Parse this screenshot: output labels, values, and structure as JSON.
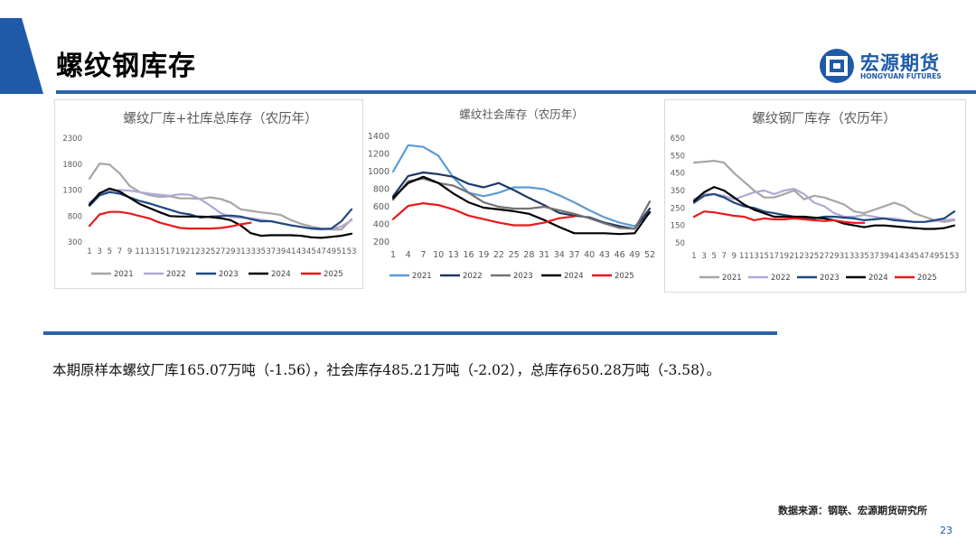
{
  "page": {
    "title": "螺纹钢库存",
    "summary": "本期原样本螺纹厂库165.07万吨（-1.56），社会库存485.21万吨（-2.02），总库存650.28万吨（-3.58）。",
    "source": "数据来源：钢联、宏源期货研究所",
    "page_number": "23"
  },
  "logo": {
    "cn": "宏源期货",
    "en": "HONGYUAN FUTURES"
  },
  "colors": {
    "accent": "#1e5aa8",
    "rule": "#2a63a6",
    "triangle": "#1e5aa8"
  },
  "chart_data": [
    {
      "type": "line",
      "title": "螺纹厂库+社库总库存（农历年）",
      "x": [
        1,
        3,
        5,
        7,
        9,
        11,
        13,
        15,
        17,
        19,
        21,
        23,
        25,
        27,
        29,
        31,
        33,
        35,
        37,
        39,
        41,
        43,
        45,
        47,
        49,
        51,
        53
      ],
      "x_tick_labels": [
        "1",
        "3",
        "5",
        "7",
        "9",
        "11",
        "13",
        "15",
        "17",
        "19",
        "21",
        "23",
        "25",
        "27",
        "29",
        "31",
        "33",
        "35",
        "37",
        "39",
        "41",
        "43",
        "45",
        "47",
        "49",
        "51",
        "53"
      ],
      "ylim": [
        300,
        2300
      ],
      "y_ticks": [
        300,
        800,
        1300,
        1800,
        2300
      ],
      "legend": "bottom",
      "series": [
        {
          "name": "2021",
          "color": "#a6a6a6",
          "values": [
            1520,
            1810,
            1790,
            1620,
            1380,
            1260,
            1200,
            1170,
            1180,
            1140,
            1140,
            1130,
            1160,
            1130,
            1060,
            930,
            900,
            870,
            850,
            820,
            720,
            650,
            600,
            560,
            540,
            540,
            740
          ]
        },
        {
          "name": "2022",
          "color": "#b4a7d6",
          "values": [
            1060,
            1200,
            1290,
            1300,
            1290,
            1260,
            1230,
            1210,
            1190,
            1220,
            1210,
            1120,
            1000,
            860,
            780,
            770,
            760,
            730,
            700,
            660,
            620,
            590,
            560,
            540,
            550,
            600,
            720
          ]
        },
        {
          "name": "2023",
          "color": "#1f497d",
          "values": [
            1000,
            1200,
            1260,
            1230,
            1160,
            1090,
            1040,
            980,
            920,
            860,
            830,
            770,
            790,
            800,
            810,
            790,
            740,
            700,
            700,
            660,
            620,
            590,
            560,
            550,
            560,
            700,
            930
          ]
        },
        {
          "name": "2024",
          "color": "#000000",
          "values": [
            1020,
            1240,
            1330,
            1270,
            1150,
            1030,
            950,
            870,
            800,
            790,
            790,
            790,
            780,
            760,
            720,
            620,
            470,
            420,
            430,
            430,
            430,
            420,
            390,
            380,
            400,
            420,
            460
          ]
        },
        {
          "name": "2025",
          "color": "#e8191c",
          "values": [
            610,
            830,
            880,
            880,
            850,
            800,
            750,
            670,
            620,
            570,
            560,
            560,
            560,
            570,
            600,
            640,
            670,
            null,
            null,
            null,
            null,
            null,
            null,
            null,
            null,
            null,
            null
          ]
        }
      ]
    },
    {
      "type": "line",
      "title": "螺纹社会库存（农历年）",
      "x": [
        1,
        4,
        7,
        10,
        13,
        16,
        19,
        22,
        25,
        28,
        31,
        34,
        37,
        40,
        43,
        46,
        49,
        52
      ],
      "x_tick_labels": [
        "1",
        "4",
        "7",
        "10",
        "13",
        "16",
        "19",
        "22",
        "25",
        "28",
        "31",
        "34",
        "37",
        "40",
        "43",
        "46",
        "49",
        "52"
      ],
      "ylim": [
        200,
        1400
      ],
      "y_ticks": [
        200,
        400,
        600,
        800,
        1000,
        1200,
        1400
      ],
      "legend": "bottom",
      "series": [
        {
          "name": "2021",
          "color": "#5b9bd5",
          "values": [
            1000,
            1300,
            1280,
            1180,
            930,
            760,
            720,
            760,
            820,
            820,
            800,
            730,
            650,
            560,
            480,
            420,
            380,
            530
          ]
        },
        {
          "name": "2022",
          "color": "#1f3864",
          "values": [
            720,
            950,
            990,
            970,
            940,
            860,
            820,
            870,
            790,
            700,
            620,
            530,
            500,
            480,
            420,
            380,
            350,
            580
          ]
        },
        {
          "name": "2023",
          "color": "#767171",
          "values": [
            680,
            890,
            920,
            870,
            840,
            760,
            650,
            600,
            580,
            580,
            600,
            560,
            520,
            470,
            410,
            360,
            350,
            660
          ]
        },
        {
          "name": "2024",
          "color": "#000000",
          "values": [
            700,
            870,
            940,
            870,
            750,
            650,
            590,
            570,
            550,
            520,
            450,
            370,
            300,
            300,
            300,
            290,
            300,
            540
          ]
        },
        {
          "name": "2025",
          "color": "#e8191c",
          "values": [
            460,
            610,
            640,
            620,
            570,
            500,
            460,
            420,
            390,
            390,
            420,
            470,
            490,
            null,
            null,
            null,
            null,
            null
          ]
        }
      ]
    },
    {
      "type": "line",
      "title": "螺纹钢厂库存（农历年）",
      "x": [
        1,
        3,
        5,
        7,
        9,
        11,
        13,
        15,
        17,
        19,
        21,
        23,
        25,
        27,
        29,
        31,
        33,
        35,
        37,
        39,
        41,
        43,
        45,
        47,
        49,
        51,
        53
      ],
      "x_tick_labels": [
        "1",
        "3",
        "5",
        "7",
        "9",
        "11",
        "13",
        "15",
        "17",
        "19",
        "21",
        "23",
        "25",
        "27",
        "29",
        "31",
        "33",
        "35",
        "37",
        "39",
        "41",
        "43",
        "45",
        "47",
        "49",
        "51",
        "53"
      ],
      "ylim": [
        50,
        650
      ],
      "y_ticks": [
        50,
        150,
        250,
        350,
        450,
        550,
        650
      ],
      "legend": "bottom",
      "series": [
        {
          "name": "2021",
          "color": "#a6a6a6",
          "values": [
            510,
            515,
            520,
            510,
            450,
            400,
            350,
            310,
            310,
            330,
            350,
            300,
            320,
            310,
            290,
            270,
            230,
            220,
            240,
            260,
            280,
            260,
            220,
            200,
            180,
            170,
            180
          ]
        },
        {
          "name": "2022",
          "color": "#b4a7d6",
          "values": [
            300,
            330,
            330,
            320,
            300,
            320,
            340,
            350,
            330,
            350,
            360,
            330,
            280,
            260,
            220,
            200,
            200,
            210,
            200,
            190,
            190,
            180,
            170,
            170,
            175,
            180,
            185
          ]
        },
        {
          "name": "2023",
          "color": "#1f497d",
          "values": [
            280,
            320,
            330,
            310,
            280,
            260,
            250,
            230,
            220,
            210,
            200,
            190,
            190,
            200,
            200,
            195,
            190,
            180,
            185,
            190,
            180,
            175,
            170,
            170,
            180,
            190,
            230
          ]
        },
        {
          "name": "2024",
          "color": "#000000",
          "values": [
            290,
            340,
            370,
            350,
            310,
            270,
            240,
            220,
            200,
            200,
            200,
            200,
            195,
            190,
            180,
            160,
            150,
            140,
            150,
            150,
            145,
            140,
            135,
            130,
            130,
            135,
            150
          ]
        },
        {
          "name": "2025",
          "color": "#e8191c",
          "values": [
            200,
            230,
            225,
            215,
            205,
            200,
            180,
            190,
            185,
            185,
            190,
            185,
            180,
            175,
            180,
            170,
            165,
            165,
            null,
            null,
            null,
            null,
            null,
            null,
            null,
            null,
            null
          ]
        }
      ]
    }
  ]
}
